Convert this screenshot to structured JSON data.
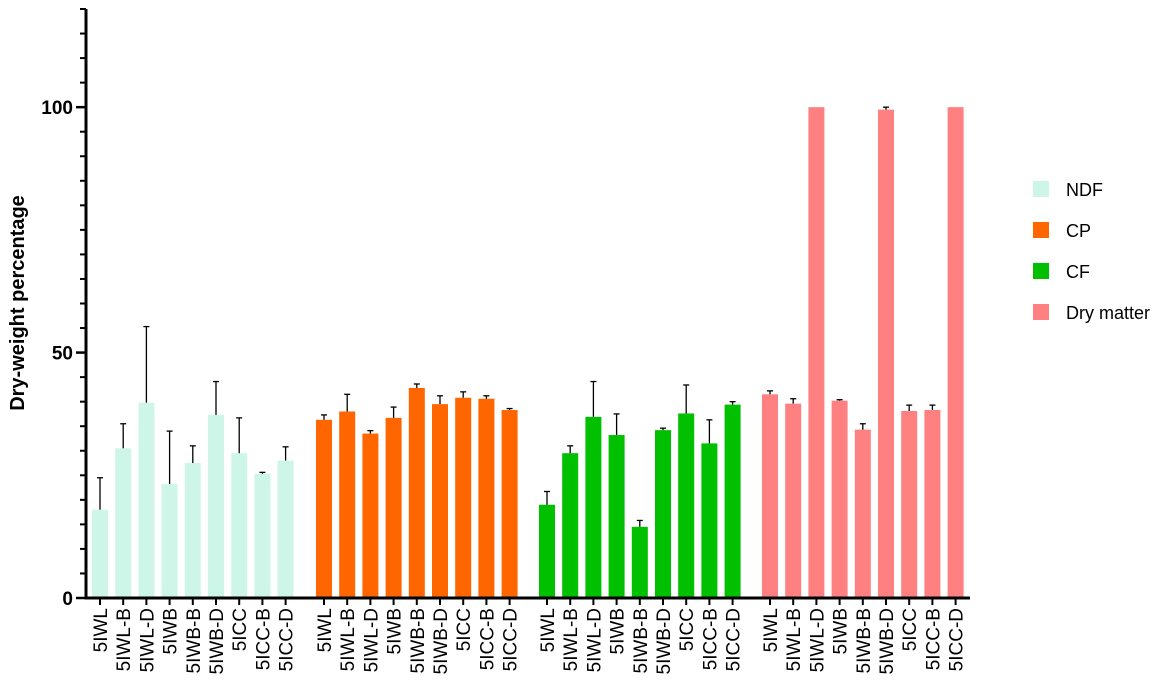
{
  "chart_data": {
    "type": "bar",
    "title": "",
    "xlabel": "",
    "ylabel": "Dry-weight percentage",
    "ylim": [
      0,
      120
    ],
    "y_major_ticks": [
      0,
      50,
      100
    ],
    "y_minor_step": 5,
    "grid": false,
    "legend_position": "right",
    "error_bars": true,
    "categories": [
      "5IWL",
      "5IWL-B",
      "5IWL-D",
      "5IWB",
      "5IWB-B",
      "5IWB-D",
      "5ICC",
      "5ICC-B",
      "5ICC-D"
    ],
    "series": [
      {
        "name": "NDF",
        "color": "#cdf6e8",
        "values": [
          18,
          30.5,
          39.8,
          23.2,
          27.5,
          37.3,
          29.5,
          25.3,
          28
        ],
        "errors": [
          6.5,
          5,
          15.5,
          10.8,
          3.5,
          6.8,
          7.2,
          0.3,
          2.8
        ]
      },
      {
        "name": "CP",
        "color": "#ff6600",
        "values": [
          36.3,
          38,
          33.5,
          36.7,
          42.8,
          39.5,
          40.8,
          40.6,
          38.3
        ],
        "errors": [
          1,
          3.5,
          0.6,
          2.2,
          0.8,
          1.7,
          1.2,
          0.6,
          0.3
        ]
      },
      {
        "name": "CF",
        "color": "#00c000",
        "values": [
          19,
          29.5,
          36.9,
          33.2,
          14.5,
          34.2,
          37.6,
          31.5,
          39.4
        ],
        "errors": [
          2.7,
          1.5,
          7.2,
          4.3,
          1.3,
          0.4,
          5.8,
          4.8,
          0.6
        ]
      },
      {
        "name": "Dry matter",
        "color": "#ff8080",
        "values": [
          41.5,
          39.6,
          100,
          40.2,
          34.3,
          99.5,
          38.1,
          38.3,
          100
        ],
        "errors": [
          0.7,
          1,
          0,
          0.2,
          1.2,
          0.5,
          1.2,
          1,
          0
        ]
      }
    ]
  }
}
